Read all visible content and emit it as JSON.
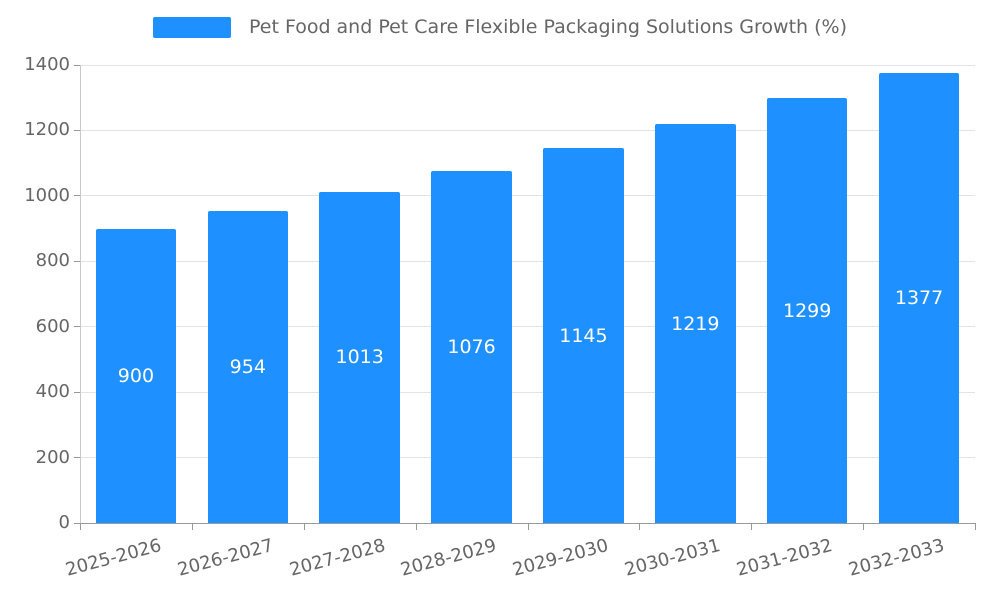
{
  "legend": {
    "label": "Pet Food and Pet Care Flexible Packaging Solutions Growth (%)",
    "swatch_color": "#1E90FF"
  },
  "chart_data": {
    "type": "bar",
    "title": "Pet Food and Pet Care Flexible Packaging Solutions Growth (%)",
    "categories": [
      "2025-2026",
      "2026-2027",
      "2027-2028",
      "2028-2029",
      "2029-2030",
      "2030-2031",
      "2031-2032",
      "2032-2033"
    ],
    "values": [
      900,
      954,
      1013,
      1076,
      1145,
      1219,
      1299,
      1377
    ],
    "xlabel": "",
    "ylabel": "",
    "ylim": [
      0,
      1400
    ],
    "ytick_step": 200,
    "ytick_labels": [
      "0",
      "200",
      "400",
      "600",
      "800",
      "1000",
      "1200",
      "1400"
    ],
    "bar_color": "#1E90FF",
    "value_label_color": "#ffffff",
    "grid": true,
    "legend_position": "top"
  }
}
